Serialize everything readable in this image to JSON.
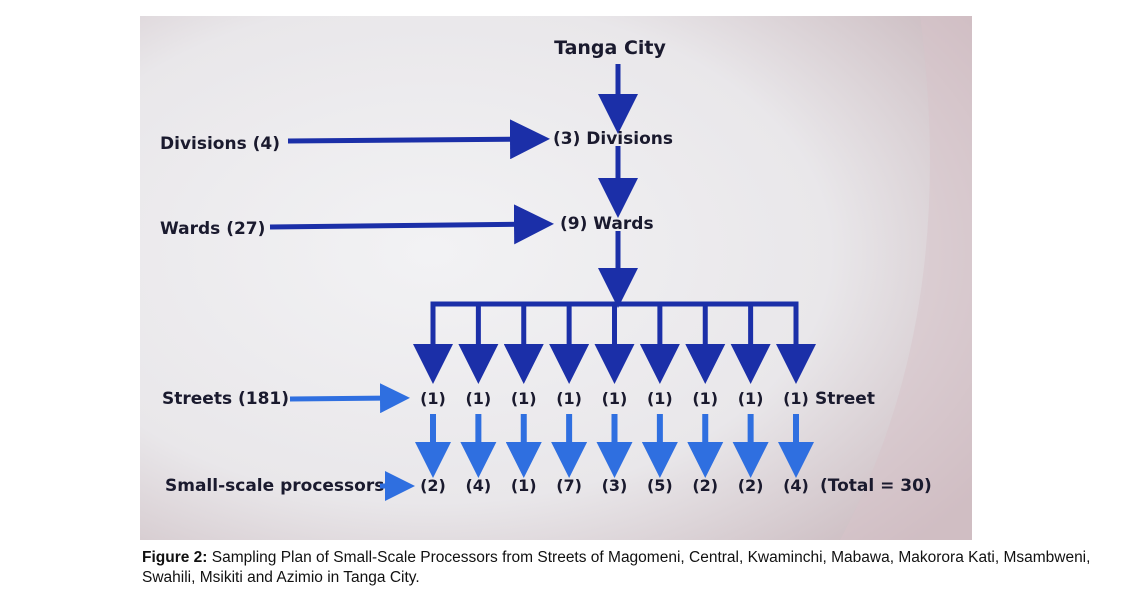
{
  "diagram": {
    "top_node": "Tanga City",
    "levels": [
      {
        "label": "Divisions (4)",
        "target": "(3) Divisions"
      },
      {
        "label": "Wards (27)",
        "target": "(9) Wards"
      },
      {
        "label": "Streets (181)",
        "target": "(1) (1) (1) (1) (1) (1) (1) (1) (1) Street"
      },
      {
        "label": "Small-scale processors",
        "target": "(2) (4) (1) (7) (3) (5) (2) (2) (4) (Total = 30)"
      }
    ],
    "streets": [
      "(1)",
      "(1)",
      "(1)",
      "(1)",
      "(1)",
      "(1)",
      "(1)",
      "(1)",
      "(1)"
    ],
    "streets_suffix": "Street",
    "processors": [
      "(2)",
      "(4)",
      "(1)",
      "(7)",
      "(3)",
      "(5)",
      "(2)",
      "(2)",
      "(4)"
    ],
    "processors_total": "(Total = 30)"
  },
  "caption": {
    "prefix": "Figure 2:",
    "text": "Sampling Plan of Small-Scale Processors from Streets of Magomeni, Central, Kwaminchi, Mabawa, Makorora Kati, Msambweni, Swahili, Msikiti and Azimio in Tanga City."
  },
  "colors": {
    "arrow": "#1b2fa8",
    "light_arrow": "#2f6fe0",
    "text": "#1a1a2e"
  }
}
